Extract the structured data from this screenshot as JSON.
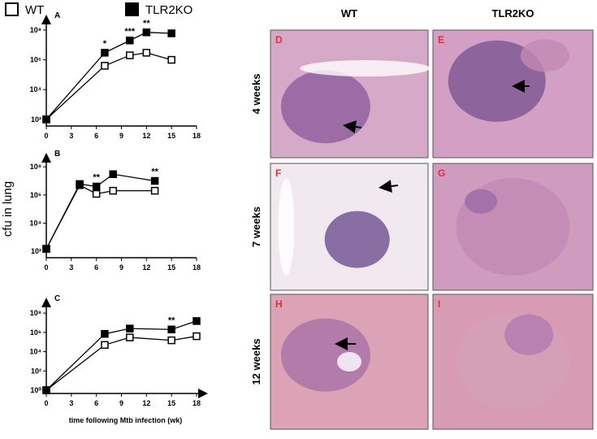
{
  "chart_data": [
    {
      "type": "line",
      "label": "A",
      "log_y": true,
      "x": [
        0,
        7,
        10,
        12,
        15
      ],
      "xlim": [
        0,
        18
      ],
      "xticks": [
        0,
        3,
        6,
        9,
        12,
        15,
        18
      ],
      "ylim": [
        36,
        240000000
      ],
      "yticks": [
        {
          "value": 100,
          "label": "10²"
        },
        {
          "value": 10000,
          "label": "10⁴"
        },
        {
          "value": 1000000,
          "label": "10⁶"
        },
        {
          "value": 100000000,
          "label": "10⁸"
        }
      ],
      "series": [
        {
          "name": "WT",
          "color": "#000000",
          "marker": "open-square",
          "values": [
            100,
            400000,
            2000000,
            3000000,
            1000000
          ]
        },
        {
          "name": "TLR2KO",
          "color": "#000000",
          "marker": "filled-square",
          "values": [
            100,
            3000000,
            20000000,
            70000000,
            60000000
          ]
        }
      ],
      "annotations": [
        {
          "text": "*",
          "x": 7
        },
        {
          "text": "***",
          "x": 10
        },
        {
          "text": "**",
          "x": 12
        }
      ]
    },
    {
      "type": "line",
      "label": "B",
      "log_y": true,
      "ylabel": "cfu in lung",
      "x": [
        0,
        4,
        6,
        8,
        13
      ],
      "xlim": [
        0,
        18
      ],
      "xticks": [
        0,
        3,
        6,
        9,
        12,
        15,
        18
      ],
      "ylim": [
        35,
        200000000
      ],
      "yticks": [
        {
          "value": 100,
          "label": "10²"
        },
        {
          "value": 10000,
          "label": "10⁴"
        },
        {
          "value": 1000000,
          "label": "10⁶"
        },
        {
          "value": 100000000,
          "label": "10⁸"
        }
      ],
      "series": [
        {
          "color": "#000000",
          "marker": "open-square",
          "values": [
            150,
            5000000,
            1200000,
            2000000,
            2000000
          ]
        },
        {
          "color": "#000000",
          "marker": "filled-square",
          "values": [
            150,
            6000000,
            4000000,
            30000000,
            10000000
          ]
        }
      ],
      "annotations": [
        {
          "text": "**",
          "x": 6
        },
        {
          "text": "**",
          "x": 13
        }
      ]
    },
    {
      "type": "line",
      "label": "C",
      "log_y": true,
      "xlabel": "time following Mtb infection (wk)",
      "x": [
        0,
        7,
        10,
        15,
        18
      ],
      "xlim": [
        0,
        18
      ],
      "xticks": [
        0,
        3,
        6,
        9,
        12,
        15,
        18
      ],
      "ylim": [
        0.46,
        400000000
      ],
      "yticks": [
        {
          "value": 1,
          "label": "10⁰"
        },
        {
          "value": 100,
          "label": "10²"
        },
        {
          "value": 10000,
          "label": "10⁴"
        },
        {
          "value": 1000000,
          "label": "10⁶"
        },
        {
          "value": 100000000,
          "label": "10⁸"
        }
      ],
      "series": [
        {
          "color": "#000000",
          "marker": "open-square",
          "values": [
            1,
            50000,
            300000,
            150000,
            400000
          ]
        },
        {
          "color": "#000000",
          "marker": "filled-square",
          "values": [
            1,
            700000,
            2500000,
            2000000,
            15000000
          ]
        }
      ],
      "annotations": [
        {
          "text": "**",
          "x": 15
        }
      ]
    }
  ],
  "histology": {
    "columns": [
      "WT",
      "TLR2KO"
    ],
    "rows": [
      "4 weeks",
      "7 weeks",
      "12 weeks"
    ],
    "panels": [
      "D",
      "E",
      "F",
      "G",
      "H",
      "I"
    ]
  }
}
